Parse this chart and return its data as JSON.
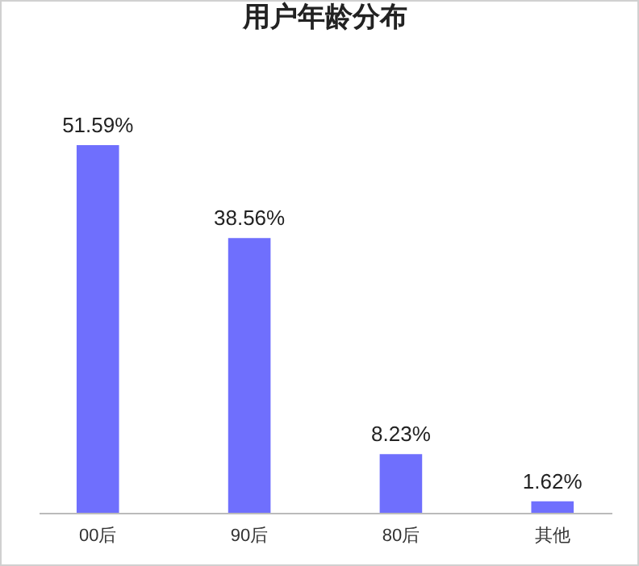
{
  "chart_data": {
    "type": "bar",
    "title": "用户年龄分布",
    "categories": [
      "00后",
      "90后",
      "80后",
      "其他"
    ],
    "values": [
      51.59,
      38.56,
      8.23,
      1.62
    ],
    "value_labels": [
      "51.59%",
      "38.56%",
      "8.23%",
      "1.62%"
    ],
    "color": "#6f6ffd"
  }
}
